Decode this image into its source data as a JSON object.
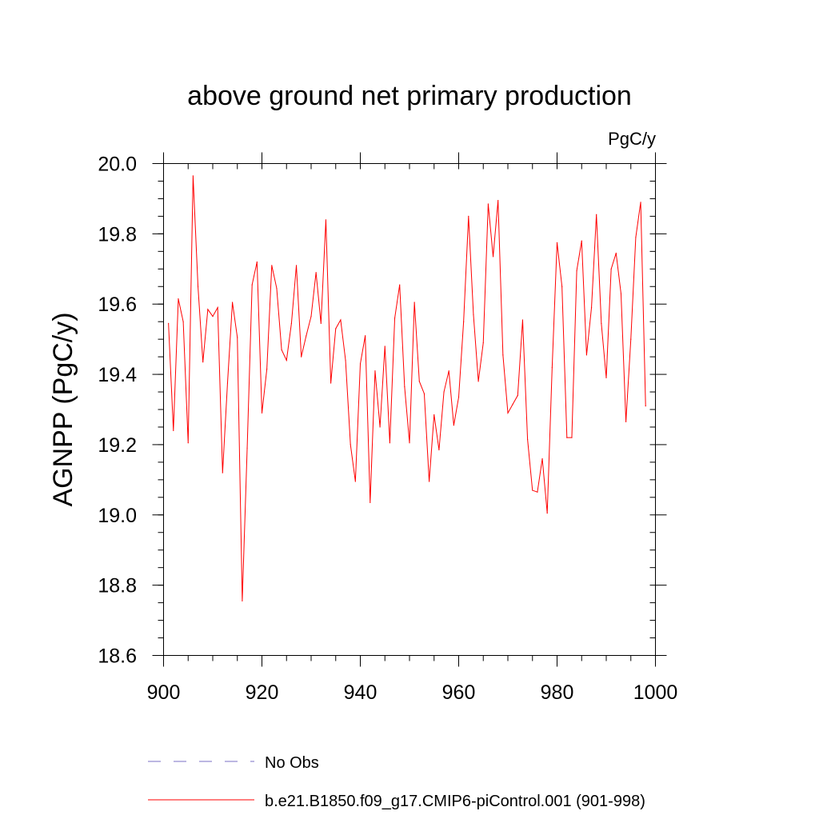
{
  "chart_data": {
    "type": "line",
    "title": "above ground net primary production",
    "units": "PgC/y",
    "ylabel": "AGNPP  (PgC/y)",
    "xlabel": "",
    "xlim": [
      900,
      1000
    ],
    "ylim": [
      18.6,
      20.0
    ],
    "xticks": [
      900,
      920,
      940,
      960,
      980,
      1000
    ],
    "xtick_labels": [
      "900",
      "920",
      "940",
      "960",
      "980",
      "1000"
    ],
    "yticks": [
      18.6,
      18.8,
      19.0,
      19.2,
      19.4,
      19.6,
      19.8,
      20.0
    ],
    "ytick_labels": [
      "18.6",
      "18.8",
      "19.0",
      "19.2",
      "19.4",
      "19.6",
      "19.8",
      "20.0"
    ],
    "x_minor_step": 5,
    "y_minor_step": 0.05,
    "grid": false,
    "series": [
      {
        "name": "b.e21.B1850.f09_g17.CMIP6-piControl.001 (901-998)",
        "color": "#ff0000",
        "style": "solid",
        "x": [
          901,
          902,
          903,
          904,
          905,
          906,
          907,
          908,
          909,
          910,
          911,
          912,
          913,
          914,
          915,
          916,
          917,
          918,
          919,
          920,
          921,
          922,
          923,
          924,
          925,
          926,
          927,
          928,
          929,
          930,
          931,
          932,
          933,
          934,
          935,
          936,
          937,
          938,
          939,
          940,
          941,
          942,
          943,
          944,
          945,
          946,
          947,
          948,
          949,
          950,
          951,
          952,
          953,
          954,
          955,
          956,
          957,
          958,
          959,
          960,
          961,
          962,
          963,
          964,
          965,
          966,
          967,
          968,
          969,
          970,
          971,
          972,
          973,
          974,
          975,
          976,
          977,
          978,
          979,
          980,
          981,
          982,
          983,
          984,
          985,
          986,
          987,
          988,
          989,
          990,
          991,
          992,
          993,
          994,
          995,
          996,
          997,
          998
        ],
        "values": [
          19.545,
          19.24,
          19.615,
          19.55,
          19.205,
          19.965,
          19.65,
          19.435,
          19.585,
          19.565,
          19.59,
          19.12,
          19.375,
          19.605,
          19.505,
          18.755,
          19.19,
          19.655,
          19.72,
          19.29,
          19.415,
          19.71,
          19.645,
          19.47,
          19.44,
          19.545,
          19.71,
          19.45,
          19.51,
          19.565,
          19.69,
          19.545,
          19.84,
          19.375,
          19.53,
          19.555,
          19.44,
          19.2,
          19.095,
          19.43,
          19.51,
          19.035,
          19.41,
          19.25,
          19.48,
          19.205,
          19.56,
          19.655,
          19.365,
          19.205,
          19.605,
          19.38,
          19.345,
          19.095,
          19.285,
          19.185,
          19.35,
          19.41,
          19.255,
          19.335,
          19.55,
          19.85,
          19.57,
          19.38,
          19.49,
          19.885,
          19.735,
          19.895,
          19.455,
          19.29,
          19.315,
          19.34,
          19.555,
          19.215,
          19.07,
          19.065,
          19.16,
          19.005,
          19.42,
          19.775,
          19.65,
          19.22,
          19.22,
          19.695,
          19.78,
          19.455,
          19.59,
          19.855,
          19.545,
          19.39,
          19.7,
          19.745,
          19.63,
          19.265,
          19.5,
          19.79,
          19.89,
          19.31
        ]
      }
    ],
    "legend": [
      {
        "label": "No Obs",
        "color": "#7a6fc4",
        "style": "dashed"
      },
      {
        "label": "b.e21.B1850.f09_g17.CMIP6-piControl.001 (901-998)",
        "color": "#ff0000",
        "style": "solid"
      }
    ],
    "legend_position": "bottom"
  }
}
